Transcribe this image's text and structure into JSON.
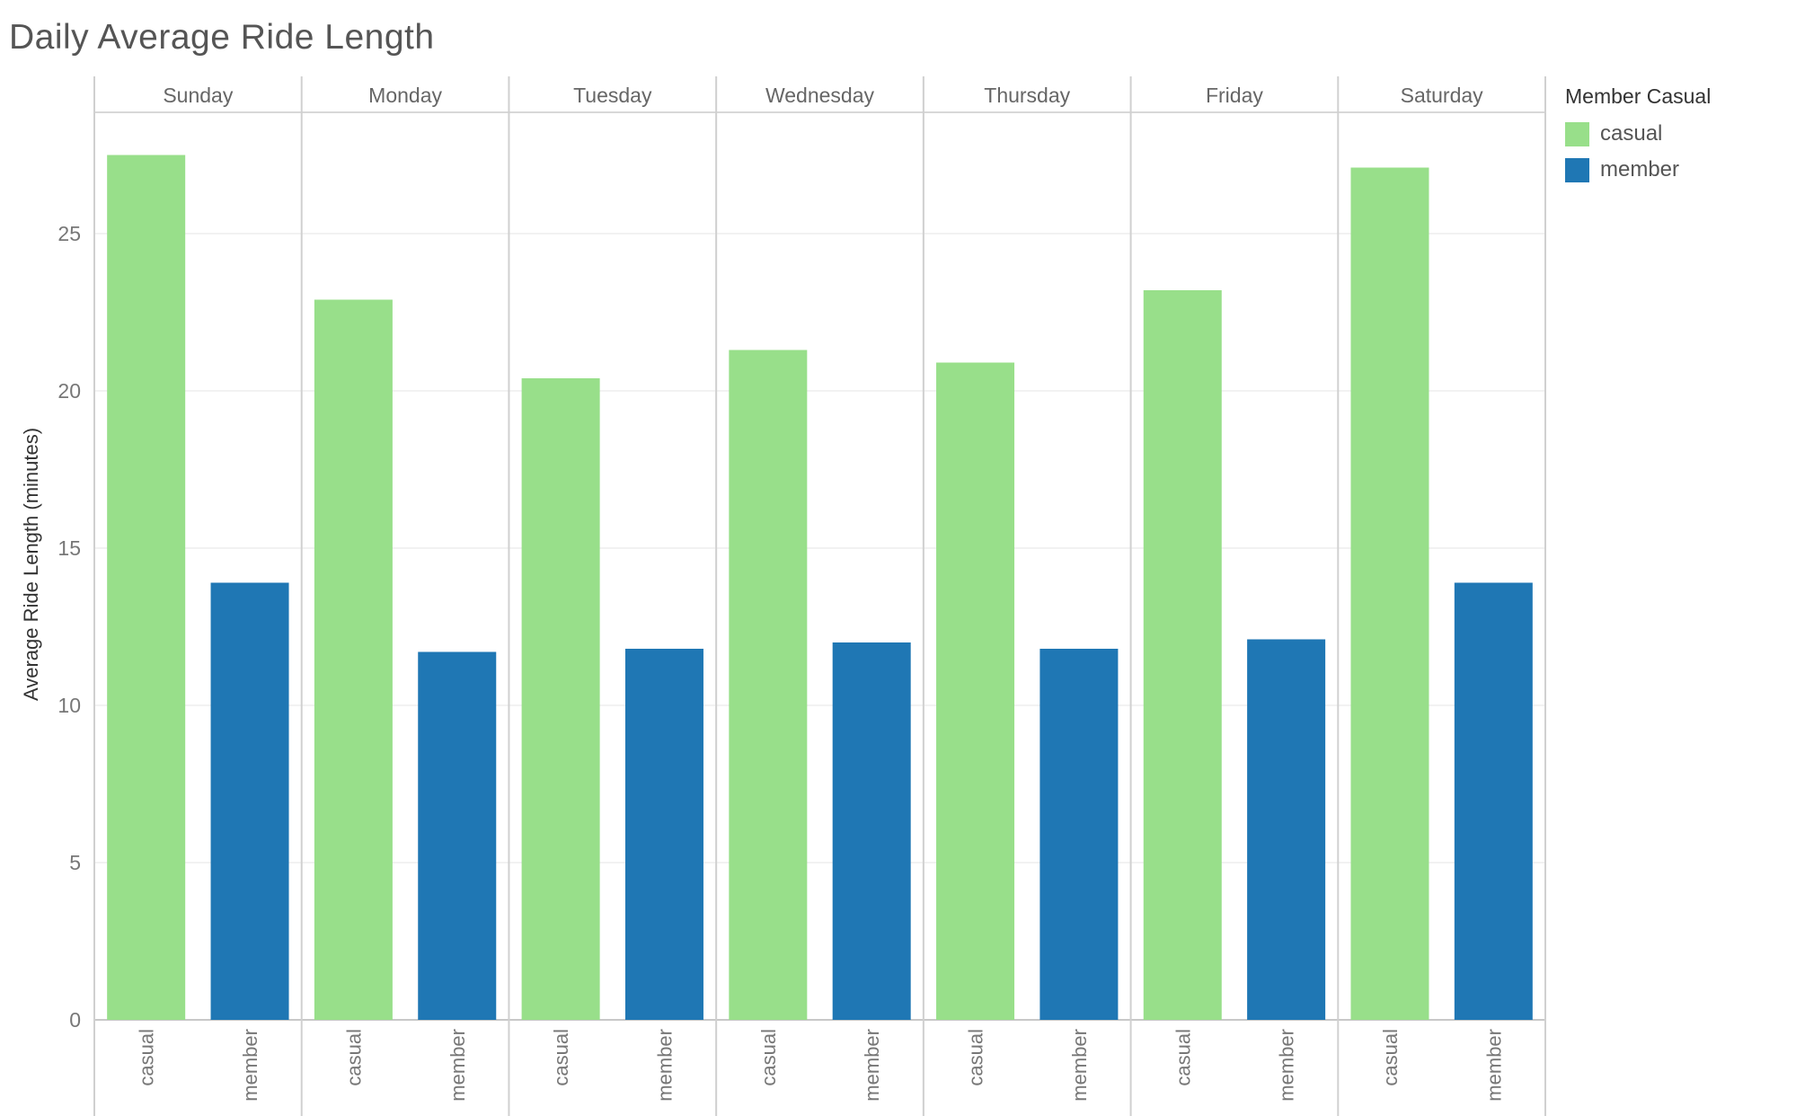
{
  "chart_data": {
    "type": "bar",
    "title": "Daily Average Ride Length",
    "ylabel": "Average Ride Length (minutes)",
    "ylim": [
      0,
      28
    ],
    "yticks": [
      0,
      5,
      10,
      15,
      20,
      25
    ],
    "grid": true,
    "legend_position": "top-right",
    "legend_title": "Member Casual",
    "categories": [
      "Sunday",
      "Monday",
      "Tuesday",
      "Wednesday",
      "Thursday",
      "Friday",
      "Saturday"
    ],
    "subcategories": [
      "casual",
      "member"
    ],
    "series": [
      {
        "name": "casual",
        "color": "#98df8a",
        "values": [
          27.5,
          22.9,
          20.4,
          21.3,
          20.9,
          23.2,
          27.1
        ]
      },
      {
        "name": "member",
        "color": "#1f77b4",
        "values": [
          13.9,
          11.7,
          11.8,
          12.0,
          11.8,
          12.1,
          13.9
        ]
      }
    ]
  }
}
